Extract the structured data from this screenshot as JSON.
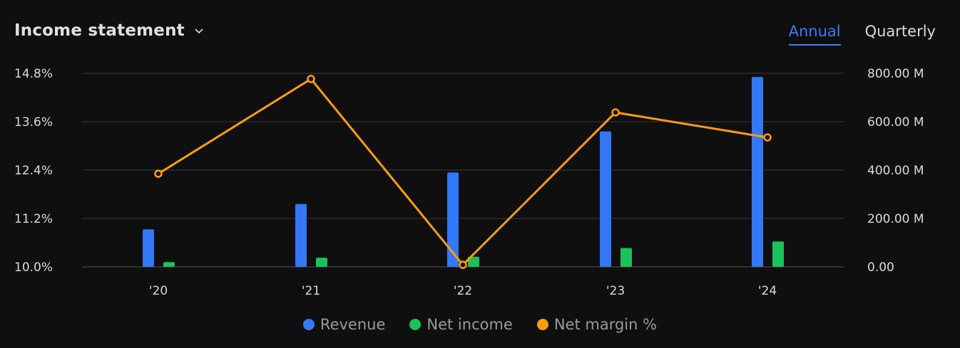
{
  "header": {
    "title": "Income statement"
  },
  "tabs": [
    {
      "label": "Annual",
      "active": true
    },
    {
      "label": "Quarterly",
      "active": false
    }
  ],
  "colors": {
    "revenue": "#3478f6",
    "net_income": "#19c35a",
    "net_margin": "#ff9d0a",
    "grid": "#3a3a3a",
    "accent": "#3d7bff"
  },
  "chart_data": {
    "type": "bar",
    "categories": [
      "'20",
      "'21",
      "'22",
      "'23",
      "'24"
    ],
    "series": [
      {
        "name": "Revenue",
        "type": "bar",
        "axis": "right",
        "values": [
          155,
          260,
          390,
          560,
          785
        ]
      },
      {
        "name": "Net income",
        "type": "bar",
        "axis": "right",
        "values": [
          20,
          38,
          42,
          78,
          105
        ]
      },
      {
        "name": "Net margin %",
        "type": "line",
        "axis": "left",
        "values": [
          12.31,
          14.66,
          10.05,
          13.83,
          13.21
        ]
      }
    ],
    "left_axis": {
      "ticks": [
        "14.8%",
        "13.6%",
        "12.4%",
        "11.2%",
        "10.0%"
      ],
      "range": [
        10.0,
        14.8
      ]
    },
    "right_axis": {
      "ticks": [
        "800.00 M",
        "600.00 M",
        "400.00 M",
        "200.00 M",
        "0.00"
      ],
      "range": [
        0,
        800
      ]
    },
    "grid": true,
    "legend": "bottom-center"
  }
}
